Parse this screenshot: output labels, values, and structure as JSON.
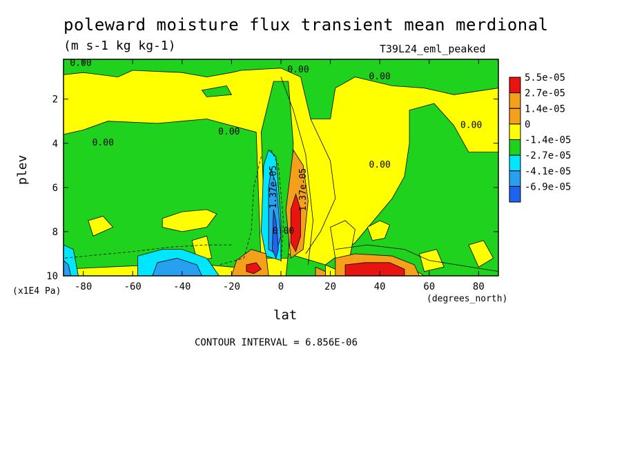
{
  "title": "poleward moisture flux transient mean merdional",
  "units": "(m s-1 kg kg-1)",
  "run_name": "T39L24_eml_peaked",
  "contour_interval_text": "CONTOUR INTERVAL = 6.856E-06",
  "colors": {
    "red": "#e8140f",
    "orange": "#f5a01a",
    "yellow": "#ffff00",
    "green": "#1ed21e",
    "cyan": "#00e6ff",
    "lightblue": "#28a0f0",
    "blue": "#1e64f0"
  },
  "chart_data": {
    "type": "heatmap",
    "title": "poleward moisture flux transient mean merdional",
    "xlabel": "lat",
    "x_unit_label": "(degrees_north)",
    "ylabel": "plev",
    "y_unit_label": "(x1E4 Pa)",
    "xlim": [
      -88,
      88
    ],
    "ylim": [
      0.2,
      10
    ],
    "y_inverted": true,
    "x_ticks": [
      -80,
      -60,
      -40,
      -20,
      0,
      20,
      40,
      60,
      80
    ],
    "y_ticks": [
      2,
      4,
      6,
      8,
      10
    ],
    "colorbar": {
      "labels": [
        "5.5e-05",
        "2.7e-05",
        "1.4e-05",
        "0",
        "-1.4e-05",
        "-2.7e-05",
        "-4.1e-05",
        "-6.9e-05"
      ],
      "colors": [
        "#e8140f",
        "#f5a01a",
        "#f5a01a",
        "#ffff00",
        "#1ed21e",
        "#00e6ff",
        "#28a0f0",
        "#1e64f0"
      ]
    },
    "contour_labels": [
      {
        "text": "0.00",
        "lat": -81,
        "plev": 0.5
      },
      {
        "text": "0.00",
        "lat": 7,
        "plev": 0.8
      },
      {
        "text": "0.00",
        "lat": 40,
        "plev": 1.1
      },
      {
        "text": "0.00",
        "lat": -72,
        "plev": 4.1
      },
      {
        "text": "0.00",
        "lat": -21,
        "plev": 3.6
      },
      {
        "text": "0.00",
        "lat": 40,
        "plev": 5.1
      },
      {
        "text": "0.00",
        "lat": 77,
        "plev": 3.3
      },
      {
        "text": "-1.37e-05",
        "lat": -2,
        "plev": 6.1
      },
      {
        "text": "1.37e-05",
        "lat": 10,
        "plev": 6.1
      },
      {
        "text": "0.00",
        "lat": 1,
        "plev": 8.1
      }
    ],
    "regions": [
      {
        "value": "negative",
        "color": "green",
        "desc": "upper troposphere bands, SH lower levels, NH high latitudes"
      },
      {
        "value": "positive",
        "color": "yellow",
        "desc": "mid-levels both hemispheres"
      },
      {
        "value": "max",
        "color": "red",
        "lat": 6,
        "plev": [
          6.5,
          8.8
        ]
      },
      {
        "value": "max",
        "color": "red",
        "lat": [
          25,
          48
        ],
        "plev": [
          9.3,
          10
        ]
      },
      {
        "value": "min",
        "color": "blue",
        "lat": -4,
        "plev": [
          4.5,
          9.0
        ]
      },
      {
        "value": "min",
        "color": "blue",
        "lat": [
          -88,
          -22
        ],
        "plev": [
          9.0,
          10
        ]
      }
    ]
  }
}
